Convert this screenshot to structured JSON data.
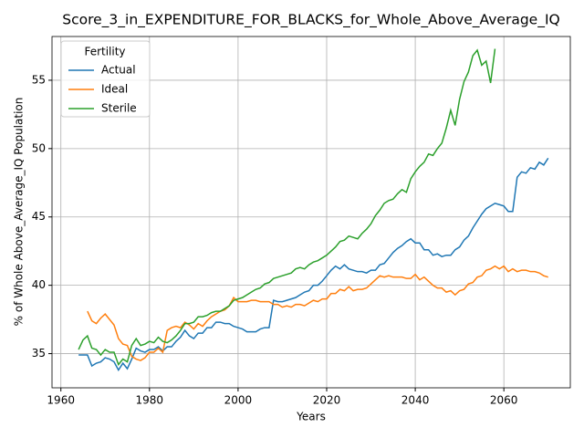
{
  "chart_data": {
    "type": "line",
    "title": "Score_3_in_EXPENDITURE_FOR_BLACKS_for_Whole_Above_Average_IQ",
    "xlabel": "Years",
    "ylabel": "% of Whole Above_Average_IQ Population",
    "legend_title": "Fertility",
    "legend": "upper left",
    "grid": true,
    "xlim": [
      1958,
      2075
    ],
    "ylim": [
      32.5,
      58.2
    ],
    "xticks": [
      1960,
      1980,
      2000,
      2020,
      2040,
      2060
    ],
    "yticks": [
      35,
      40,
      45,
      50,
      55
    ],
    "x": [
      1964,
      1965,
      1966,
      1967,
      1968,
      1969,
      1970,
      1971,
      1972,
      1973,
      1974,
      1975,
      1976,
      1977,
      1978,
      1979,
      1980,
      1981,
      1982,
      1983,
      1984,
      1985,
      1986,
      1987,
      1988,
      1989,
      1990,
      1991,
      1992,
      1993,
      1994,
      1995,
      1996,
      1997,
      1998,
      1999,
      2000,
      2001,
      2002,
      2003,
      2004,
      2005,
      2006,
      2007,
      2008,
      2009,
      2010,
      2011,
      2012,
      2013,
      2014,
      2015,
      2016,
      2017,
      2018,
      2019,
      2020,
      2021,
      2022,
      2023,
      2024,
      2025,
      2026,
      2027,
      2028,
      2029,
      2030,
      2031,
      2032,
      2033,
      2034,
      2035,
      2036,
      2037,
      2038,
      2039,
      2040,
      2041,
      2042,
      2043,
      2044,
      2045,
      2046,
      2047,
      2048,
      2049,
      2050,
      2051,
      2052,
      2053,
      2054,
      2055,
      2056,
      2057,
      2058,
      2059,
      2060,
      2061,
      2062,
      2063,
      2064,
      2065,
      2066,
      2067,
      2068,
      2069,
      2070
    ],
    "series": [
      {
        "name": "Actual",
        "color": "#1f77b4",
        "values": [
          34.9,
          34.9,
          34.9,
          34.1,
          34.3,
          34.4,
          34.7,
          34.6,
          34.4,
          33.8,
          34.3,
          33.9,
          34.6,
          35.4,
          35.2,
          35.1,
          35.3,
          35.3,
          35.5,
          35.2,
          35.5,
          35.5,
          35.9,
          36.2,
          36.7,
          36.3,
          36.1,
          36.5,
          36.5,
          36.9,
          36.9,
          37.3,
          37.3,
          37.2,
          37.2,
          37.0,
          36.9,
          36.8,
          36.6,
          36.6,
          36.6,
          36.8,
          36.9,
          36.9,
          38.9,
          38.8,
          38.8,
          38.9,
          39.0,
          39.1,
          39.3,
          39.5,
          39.6,
          40.0,
          40.0,
          40.3,
          40.7,
          41.1,
          41.4,
          41.2,
          41.5,
          41.2,
          41.1,
          41.0,
          41.0,
          40.9,
          41.1,
          41.1,
          41.5,
          41.6,
          42.0,
          42.4,
          42.7,
          42.9,
          43.2,
          43.4,
          43.1,
          43.1,
          42.6,
          42.6,
          42.2,
          42.3,
          42.1,
          42.2,
          42.2,
          42.6,
          42.8,
          43.3,
          43.6,
          44.2,
          44.7,
          45.2,
          45.6,
          45.8,
          46.0,
          45.9,
          45.8,
          45.4,
          45.4,
          47.9,
          48.3,
          48.2,
          48.6,
          48.5,
          49.0,
          48.8,
          49.3
        ]
      },
      {
        "name": "Ideal",
        "color": "#ff7f0e",
        "values": [
          null,
          null,
          38.1,
          37.4,
          37.2,
          37.6,
          37.9,
          37.5,
          37.1,
          36.1,
          35.7,
          35.6,
          34.8,
          34.6,
          34.5,
          34.7,
          35.1,
          35.1,
          35.4,
          35.1,
          36.7,
          36.9,
          37.0,
          36.9,
          37.3,
          37.1,
          36.8,
          37.2,
          37.0,
          37.4,
          37.7,
          37.9,
          38.1,
          38.2,
          38.5,
          39.1,
          38.8,
          38.8,
          38.8,
          38.9,
          38.9,
          38.8,
          38.8,
          38.8,
          38.6,
          38.6,
          38.4,
          38.5,
          38.4,
          38.6,
          38.6,
          38.5,
          38.7,
          38.9,
          38.8,
          39.0,
          39.0,
          39.4,
          39.4,
          39.7,
          39.6,
          39.9,
          39.6,
          39.7,
          39.7,
          39.8,
          40.1,
          40.4,
          40.7,
          40.6,
          40.7,
          40.6,
          40.6,
          40.6,
          40.5,
          40.5,
          40.8,
          40.4,
          40.6,
          40.3,
          40.0,
          39.8,
          39.8,
          39.5,
          39.6,
          39.3,
          39.6,
          39.7,
          40.1,
          40.2,
          40.6,
          40.7,
          41.1,
          41.2,
          41.4,
          41.2,
          41.4,
          41.0,
          41.2,
          41.0,
          41.1,
          41.1,
          41.0,
          41.0,
          40.9,
          40.7,
          40.6
        ]
      },
      {
        "name": "Sterile",
        "color": "#2ca02c",
        "values": [
          35.3,
          36.0,
          36.3,
          35.4,
          35.3,
          34.9,
          35.3,
          35.1,
          35.1,
          34.2,
          34.6,
          34.4,
          35.6,
          36.1,
          35.6,
          35.7,
          35.9,
          35.8,
          36.2,
          35.9,
          35.8,
          36.0,
          36.3,
          36.7,
          37.2,
          37.2,
          37.3,
          37.7,
          37.7,
          37.8,
          38.0,
          38.1,
          38.1,
          38.3,
          38.5,
          38.9,
          39.0,
          39.1,
          39.3,
          39.5,
          39.7,
          39.8,
          40.1,
          40.2,
          40.5,
          40.6,
          40.7,
          40.8,
          40.9,
          41.2,
          41.3,
          41.2,
          41.5,
          41.7,
          41.8,
          42.0,
          42.2,
          42.5,
          42.8,
          43.2,
          43.3,
          43.6,
          43.5,
          43.4,
          43.8,
          44.1,
          44.5,
          45.1,
          45.5,
          46.0,
          46.2,
          46.3,
          46.7,
          47.0,
          46.8,
          47.8,
          48.3,
          48.7,
          49.0,
          49.6,
          49.5,
          50.0,
          50.4,
          51.5,
          52.8,
          51.7,
          53.6,
          54.9,
          55.6,
          56.8,
          57.2,
          56.1,
          56.4,
          54.8,
          57.3,
          null,
          null,
          null,
          null,
          null,
          null,
          null,
          null,
          null,
          null,
          null,
          null
        ]
      }
    ]
  }
}
